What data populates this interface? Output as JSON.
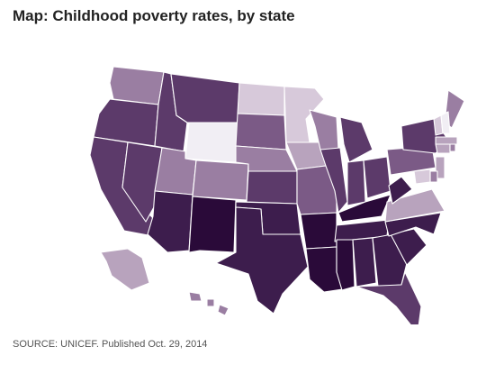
{
  "title": "Map: Childhood poverty rates, by state",
  "source": "SOURCE: UNICEF. Published Oct. 29, 2014",
  "colors": {
    "scale": [
      "#f1eef4",
      "#d7c9da",
      "#b8a3bd",
      "#9a7ea2",
      "#7b5a86",
      "#5c3a6a",
      "#3d1d4d",
      "#2a0a39"
    ]
  },
  "states": [
    {
      "name": "Washington",
      "shade": 3
    },
    {
      "name": "Oregon",
      "shade": 5
    },
    {
      "name": "California",
      "shade": 5
    },
    {
      "name": "Nevada",
      "shade": 5
    },
    {
      "name": "Idaho",
      "shade": 5
    },
    {
      "name": "Montana",
      "shade": 5
    },
    {
      "name": "Wyoming",
      "shade": 0
    },
    {
      "name": "Utah",
      "shade": 3
    },
    {
      "name": "Arizona",
      "shade": 6
    },
    {
      "name": "Colorado",
      "shade": 3
    },
    {
      "name": "New Mexico",
      "shade": 7
    },
    {
      "name": "North Dakota",
      "shade": 1
    },
    {
      "name": "South Dakota",
      "shade": 4
    },
    {
      "name": "Nebraska",
      "shade": 3
    },
    {
      "name": "Kansas",
      "shade": 5
    },
    {
      "name": "Oklahoma",
      "shade": 6
    },
    {
      "name": "Texas",
      "shade": 6
    },
    {
      "name": "Minnesota",
      "shade": 1
    },
    {
      "name": "Iowa",
      "shade": 2
    },
    {
      "name": "Missouri",
      "shade": 4
    },
    {
      "name": "Arkansas",
      "shade": 7
    },
    {
      "name": "Louisiana",
      "shade": 7
    },
    {
      "name": "Wisconsin",
      "shade": 3
    },
    {
      "name": "Illinois",
      "shade": 5
    },
    {
      "name": "Michigan",
      "shade": 5
    },
    {
      "name": "Indiana",
      "shade": 5
    },
    {
      "name": "Ohio",
      "shade": 5
    },
    {
      "name": "Kentucky",
      "shade": 7
    },
    {
      "name": "Tennessee",
      "shade": 6
    },
    {
      "name": "Mississippi",
      "shade": 7
    },
    {
      "name": "Alabama",
      "shade": 6
    },
    {
      "name": "Georgia",
      "shade": 6
    },
    {
      "name": "Florida",
      "shade": 5
    },
    {
      "name": "South Carolina",
      "shade": 6
    },
    {
      "name": "North Carolina",
      "shade": 6
    },
    {
      "name": "Virginia",
      "shade": 2
    },
    {
      "name": "West Virginia",
      "shade": 6
    },
    {
      "name": "Pennsylvania",
      "shade": 4
    },
    {
      "name": "New York",
      "shade": 5
    },
    {
      "name": "Maine",
      "shade": 3
    },
    {
      "name": "Vermont",
      "shade": 1
    },
    {
      "name": "New Hampshire",
      "shade": 0
    },
    {
      "name": "Massachusetts",
      "shade": 2
    },
    {
      "name": "Connecticut",
      "shade": 2
    },
    {
      "name": "Rhode Island",
      "shade": 3
    },
    {
      "name": "New Jersey",
      "shade": 2
    },
    {
      "name": "Delaware",
      "shade": 3
    },
    {
      "name": "Maryland",
      "shade": 1
    },
    {
      "name": "Alaska",
      "shade": 2
    },
    {
      "name": "Hawaii",
      "shade": 3
    }
  ]
}
